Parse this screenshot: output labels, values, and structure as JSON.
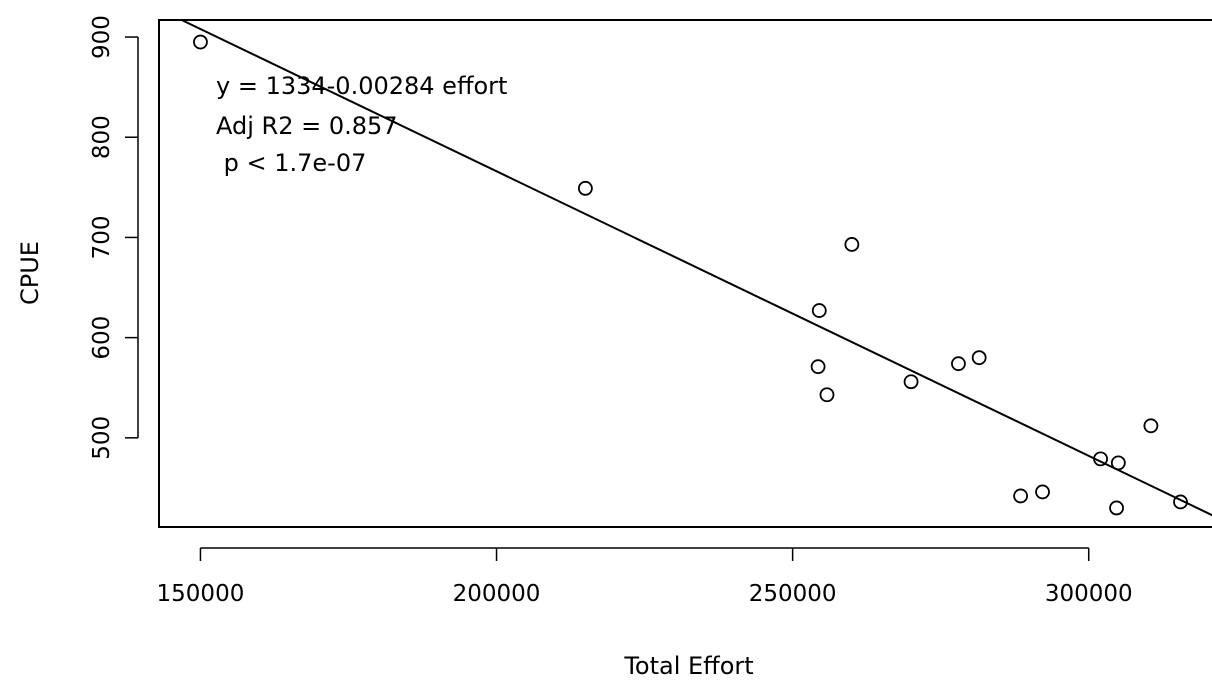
{
  "chart_data": {
    "type": "scatter",
    "xlabel": "Total Effort",
    "ylabel": "CPUE",
    "xlim": [
      143000,
      322000
    ],
    "ylim": [
      411,
      917
    ],
    "xticks": [
      150000,
      200000,
      250000,
      300000
    ],
    "yticks": [
      500,
      600,
      700,
      800,
      900
    ],
    "x_tick_labels": [
      "150000",
      "200000",
      "250000",
      "300000"
    ],
    "y_tick_labels": [
      "500",
      "600",
      "700",
      "800",
      "900"
    ],
    "points": [
      {
        "x": 150000,
        "y": 895
      },
      {
        "x": 215000,
        "y": 749
      },
      {
        "x": 254500,
        "y": 627
      },
      {
        "x": 254300,
        "y": 571
      },
      {
        "x": 255800,
        "y": 543
      },
      {
        "x": 260000,
        "y": 693
      },
      {
        "x": 270000,
        "y": 556
      },
      {
        "x": 278000,
        "y": 574
      },
      {
        "x": 281500,
        "y": 580
      },
      {
        "x": 288500,
        "y": 442
      },
      {
        "x": 292200,
        "y": 446
      },
      {
        "x": 302000,
        "y": 479
      },
      {
        "x": 305000,
        "y": 475
      },
      {
        "x": 304700,
        "y": 430
      },
      {
        "x": 310500,
        "y": 512
      },
      {
        "x": 315500,
        "y": 436
      }
    ],
    "regression": {
      "intercept": 1334,
      "slope": -0.00284
    },
    "annotations": [
      "y = 1334-0.00284 effort",
      "Adj R2 = 0.857",
      " p < 1.7e-07"
    ],
    "grid": false,
    "legend": "none"
  },
  "colors": {
    "background": "#ffffff",
    "ink": "#000000"
  }
}
